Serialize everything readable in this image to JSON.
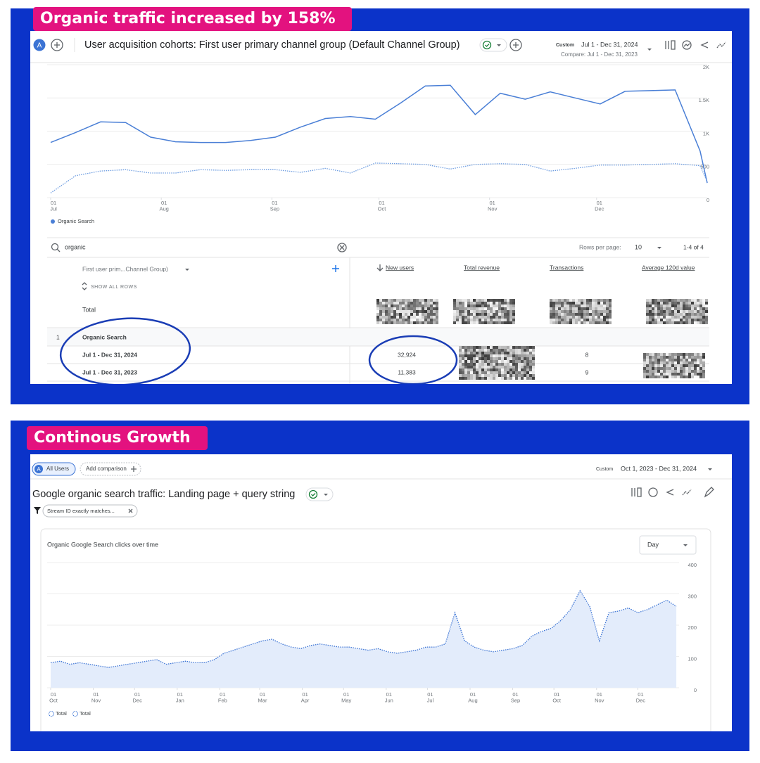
{
  "panel1": {
    "badge": "Organic traffic increased by 158%",
    "avatar": "A",
    "title": "User acquisition cohorts: First user primary channel group (Default Channel Group)",
    "date_mode": "Custom",
    "date_range": "Jul 1 - Dec 31, 2024",
    "compare": "Compare: Jul 1 - Dec 31, 2023",
    "table": {
      "search": "organic",
      "rows_per_page_label": "Rows per page:",
      "rows_per_page": "10",
      "pagination": "1-4 of 4",
      "columns": [
        "First user prim...Channel Group)",
        "New users",
        "Total revenue",
        "Transactions",
        "Average 120d value"
      ],
      "show_all": "SHOW ALL ROWS",
      "total_label": "Total",
      "group": {
        "index": "1",
        "name": "Organic Search"
      },
      "rows": [
        {
          "label": "Jul 1 - Dec 31, 2024",
          "new_users": "32,924",
          "transactions": "8"
        },
        {
          "label": "Jul 1 - Dec 31, 2023",
          "new_users": "11,383",
          "transactions": "9"
        }
      ]
    }
  },
  "panel2": {
    "badge": "Continous Growth",
    "avatar": "A",
    "segment": "All Users",
    "add_comparison": "Add comparison",
    "date_mode": "Custom",
    "date_range": "Oct 1, 2023 - Dec 31, 2024",
    "title": "Google organic search traffic: Landing page + query string",
    "filter": "Stream ID exactly matches...",
    "granularity": "Day"
  },
  "chart_data": [
    {
      "type": "line",
      "grid": true,
      "x": [
        0,
        7,
        14,
        21,
        28,
        35,
        42,
        49,
        56,
        63,
        70,
        77,
        84,
        91,
        98,
        105,
        112,
        119,
        126,
        133,
        140,
        147,
        154,
        161,
        168,
        175,
        182,
        184
      ],
      "xlim": [
        0,
        184
      ],
      "xticks": [
        {
          "value": 0,
          "label": "01\nJul"
        },
        {
          "value": 31,
          "label": "01\nAug"
        },
        {
          "value": 62,
          "label": "01\nSep"
        },
        {
          "value": 92,
          "label": "01\nOct"
        },
        {
          "value": 123,
          "label": "01\nNov"
        },
        {
          "value": 153,
          "label": "01\nDec"
        }
      ],
      "ylim": [
        0,
        2000
      ],
      "yticks": [
        0,
        500,
        {
          "value": 1000,
          "label": "1K"
        },
        {
          "value": 1500,
          "label": "1.5K"
        },
        {
          "value": 2000,
          "label": "2K"
        }
      ],
      "series": [
        {
          "name": "Organic Search",
          "color": "#4a7fd6",
          "style": "solid",
          "values": [
            830,
            980,
            1140,
            1130,
            910,
            840,
            830,
            830,
            860,
            910,
            1060,
            1190,
            1220,
            1180,
            1420,
            1680,
            1690,
            1250,
            1570,
            1480,
            1590,
            1500,
            1410,
            1600,
            1610,
            1620,
            700,
            220
          ]
        },
        {
          "color": "#6b9be0",
          "style": "dotted",
          "values": [
            70,
            330,
            400,
            420,
            370,
            370,
            420,
            410,
            420,
            420,
            380,
            440,
            370,
            520,
            510,
            500,
            430,
            500,
            510,
            500,
            400,
            440,
            490,
            490,
            500,
            510,
            480,
            240
          ]
        }
      ]
    },
    {
      "type": "area",
      "title": "Organic Google Search clicks over time",
      "grid": true,
      "x": [
        0,
        7,
        14,
        21,
        28,
        35,
        42,
        49,
        56,
        63,
        70,
        77,
        84,
        91,
        98,
        105,
        112,
        119,
        126,
        133,
        140,
        147,
        154,
        161,
        168,
        175,
        182,
        189,
        196,
        203,
        210,
        217,
        224,
        231,
        238,
        245,
        252,
        259,
        266,
        273,
        280,
        287,
        294,
        301,
        308,
        315,
        322,
        329,
        336,
        343,
        350,
        357,
        364,
        371,
        378,
        385,
        392,
        399,
        406,
        413,
        420,
        427,
        434,
        441,
        448,
        455
      ],
      "xlim": [
        0,
        457
      ],
      "xticks": [
        {
          "value": 0,
          "label": "01\nOct"
        },
        {
          "value": 31,
          "label": "01\nNov"
        },
        {
          "value": 61,
          "label": "01\nDec"
        },
        {
          "value": 92,
          "label": "01\nJan"
        },
        {
          "value": 123,
          "label": "01\nFeb"
        },
        {
          "value": 152,
          "label": "01\nMar"
        },
        {
          "value": 183,
          "label": "01\nApr"
        },
        {
          "value": 213,
          "label": "01\nMay"
        },
        {
          "value": 244,
          "label": "01\nJun"
        },
        {
          "value": 274,
          "label": "01\nJul"
        },
        {
          "value": 305,
          "label": "01\nAug"
        },
        {
          "value": 336,
          "label": "01\nSep"
        },
        {
          "value": 366,
          "label": "01\nOct"
        },
        {
          "value": 397,
          "label": "01\nNov"
        },
        {
          "value": 427,
          "label": "01\nDec"
        }
      ],
      "ylim": [
        0,
        400
      ],
      "yticks": [
        0,
        100,
        200,
        300,
        400
      ],
      "legend": [
        "Total",
        "Total"
      ],
      "series": [
        {
          "name": "Total",
          "color": "#3b73d4",
          "fill": "#e3ecfb",
          "style": "dotted",
          "values": [
            80,
            85,
            75,
            80,
            75,
            70,
            65,
            70,
            75,
            80,
            85,
            90,
            75,
            80,
            85,
            80,
            80,
            90,
            110,
            120,
            130,
            140,
            150,
            155,
            140,
            130,
            125,
            135,
            140,
            135,
            130,
            130,
            125,
            120,
            125,
            115,
            110,
            115,
            120,
            130,
            130,
            140,
            240,
            150,
            130,
            120,
            115,
            120,
            125,
            135,
            165,
            180,
            190,
            215,
            250,
            310,
            260,
            150,
            240,
            245,
            255,
            240,
            250,
            265,
            280,
            260
          ]
        }
      ]
    }
  ]
}
